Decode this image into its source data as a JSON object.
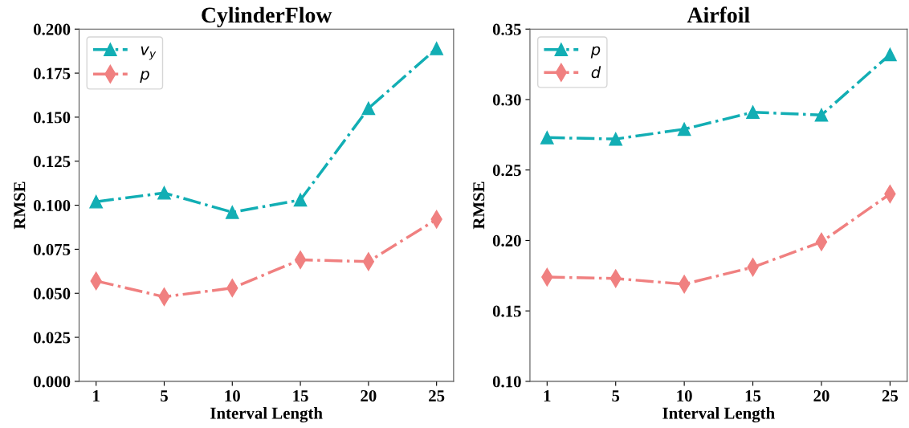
{
  "chart_data": [
    {
      "type": "line",
      "title": "CylinderFlow",
      "xlabel": "Interval Length",
      "ylabel": "RMSE",
      "categories": [
        "1",
        "5",
        "10",
        "15",
        "20",
        "25"
      ],
      "series": [
        {
          "name": "v$_{y}$",
          "color": "#12aeb4",
          "marker": "triangle",
          "values": [
            0.102,
            0.107,
            0.096,
            0.103,
            0.155,
            0.189
          ]
        },
        {
          "name": "p",
          "color": "#f08080",
          "marker": "diamond",
          "values": [
            0.057,
            0.048,
            0.053,
            0.069,
            0.068,
            0.092
          ]
        }
      ],
      "ylim": [
        0,
        0.2
      ],
      "yticks": [
        {
          "value": 0,
          "label": "0.000"
        },
        {
          "value": 0.025,
          "label": "0.025"
        },
        {
          "value": 0.05,
          "label": "0.050"
        },
        {
          "value": 0.075,
          "label": "0.075"
        },
        {
          "value": 0.1,
          "label": "0.100"
        },
        {
          "value": 0.125,
          "label": "0.125"
        },
        {
          "value": 0.15,
          "label": "0.150"
        },
        {
          "value": 0.175,
          "label": "0.175"
        },
        {
          "value": 0.2,
          "label": "0.200"
        }
      ],
      "line_style": "dashdot",
      "legend": "top left",
      "grid": false
    },
    {
      "type": "line",
      "title": "Airfoil",
      "xlabel": "Interval Length",
      "ylabel": "RMSE",
      "categories": [
        "1",
        "5",
        "10",
        "15",
        "20",
        "25"
      ],
      "series": [
        {
          "name": "p",
          "color": "#12aeb4",
          "marker": "triangle",
          "values": [
            0.273,
            0.272,
            0.279,
            0.291,
            0.289,
            0.332
          ]
        },
        {
          "name": "d",
          "color": "#f08080",
          "marker": "diamond",
          "values": [
            0.174,
            0.173,
            0.169,
            0.181,
            0.199,
            0.233
          ]
        }
      ],
      "ylim": [
        0.1,
        0.35
      ],
      "yticks": [
        {
          "value": 0.1,
          "label": "0.10"
        },
        {
          "value": 0.15,
          "label": "0.15"
        },
        {
          "value": 0.2,
          "label": "0.20"
        },
        {
          "value": 0.25,
          "label": "0.25"
        },
        {
          "value": 0.3,
          "label": "0.30"
        },
        {
          "value": 0.35,
          "label": "0.35"
        }
      ],
      "line_style": "dashdot",
      "legend": "top left",
      "grid": false
    }
  ]
}
